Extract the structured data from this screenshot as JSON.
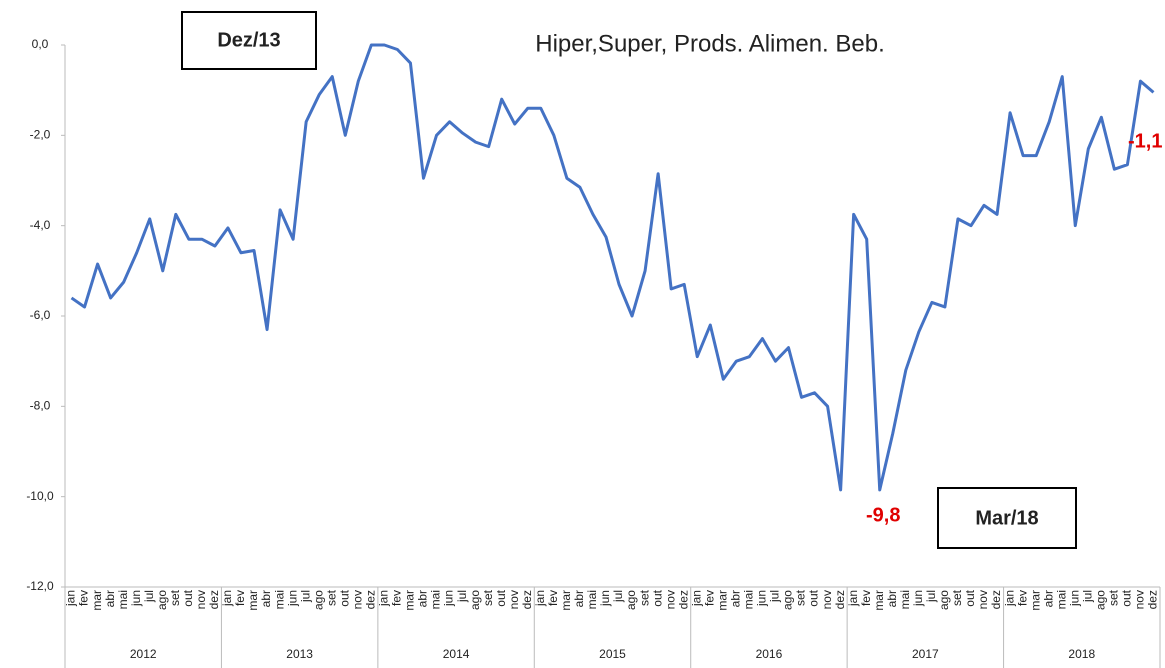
{
  "chart_data": {
    "type": "line",
    "title": "Hiper,Super, Prods. Alimen. Beb.",
    "categories": [
      "jan",
      "fev",
      "mar",
      "abr",
      "mai",
      "jun",
      "jul",
      "ago",
      "set",
      "out",
      "nov",
      "dez",
      "jan",
      "fev",
      "mar",
      "abr",
      "mai",
      "jun",
      "jul",
      "ago",
      "set",
      "out",
      "nov",
      "dez",
      "jan",
      "fev",
      "mar",
      "abr",
      "mai",
      "jun",
      "jul",
      "ago",
      "set",
      "out",
      "nov",
      "dez",
      "jan",
      "fev",
      "mar",
      "abr",
      "mai",
      "jun",
      "jul",
      "ago",
      "set",
      "out",
      "nov",
      "dez",
      "jan",
      "fev",
      "mar",
      "abr",
      "mai",
      "jun",
      "jul",
      "ago",
      "set",
      "out",
      "nov",
      "dez",
      "jan",
      "fev",
      "mar",
      "abr",
      "mai",
      "jun",
      "jul",
      "ago",
      "set",
      "out",
      "nov",
      "dez",
      "jan",
      "fev",
      "mar",
      "abr",
      "mai",
      "jun",
      "jul",
      "ago",
      "set",
      "out",
      "nov",
      "dez"
    ],
    "year_groups": [
      "2012",
      "2013",
      "2014",
      "2015",
      "2016",
      "2017",
      "2018"
    ],
    "series": [
      {
        "name": "Hiper,Super, Prods. Alimen. Beb.",
        "color": "#4472c4",
        "values": [
          -5.6,
          -5.8,
          -4.85,
          -5.6,
          -5.25,
          -4.6,
          -3.85,
          -5.0,
          -3.75,
          -4.3,
          -4.3,
          -4.45,
          -4.05,
          -4.6,
          -4.55,
          -6.3,
          -3.65,
          -4.3,
          -1.7,
          -1.1,
          -0.7,
          -2.0,
          -0.8,
          0.0,
          0.0,
          -0.1,
          -0.4,
          -2.95,
          -2.0,
          -1.7,
          -1.95,
          -2.15,
          -2.25,
          -1.2,
          -1.75,
          -1.4,
          -1.4,
          -2.0,
          -2.95,
          -3.15,
          -3.75,
          -4.25,
          -5.3,
          -6.0,
          -5.0,
          -2.85,
          -5.4,
          -5.3,
          -6.9,
          -6.2,
          -7.4,
          -7.0,
          -6.9,
          -6.5,
          -7.0,
          -6.7,
          -7.8,
          -7.7,
          -8.0,
          -9.85,
          -3.75,
          -4.3,
          -9.85,
          -8.6,
          -7.2,
          -6.35,
          -5.7,
          -5.8,
          -3.85,
          -4.0,
          -3.55,
          -3.75,
          -1.5,
          -2.45,
          -2.45,
          -1.7,
          -0.7,
          -4.0,
          -2.3,
          -1.6,
          -2.75,
          -2.65,
          -0.8,
          -1.05
        ]
      }
    ],
    "ylim": [
      -12,
      0
    ],
    "yticks": [
      {
        "value": 0,
        "label": "0,0"
      },
      {
        "value": -2,
        "label": "-2,0"
      },
      {
        "value": -4,
        "label": "-4,0"
      },
      {
        "value": -6,
        "label": "-6,0"
      },
      {
        "value": -8,
        "label": "-8,0"
      },
      {
        "value": -10,
        "label": "-10,0"
      },
      {
        "value": -12,
        "label": "-12,0"
      }
    ],
    "annotations": [
      "Dez/13",
      "Mar/18",
      "-9,8",
      "-1,1"
    ],
    "grid": false
  }
}
